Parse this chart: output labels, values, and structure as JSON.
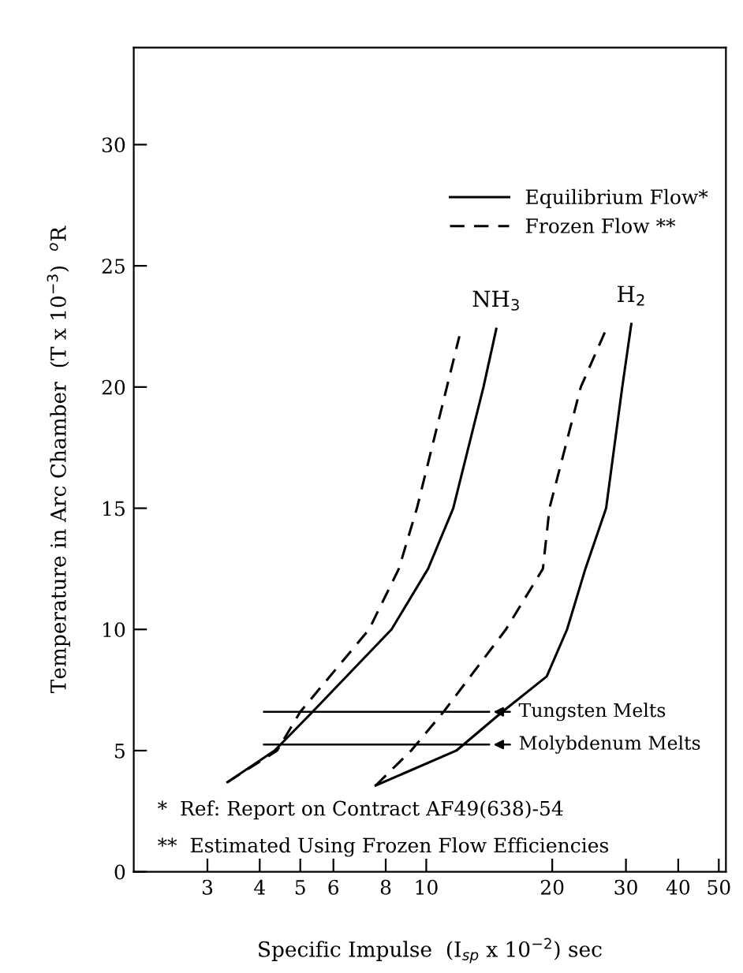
{
  "chart_data": {
    "type": "line",
    "xlabel": "Specific Impulse  (I$_{sp}$ x 10$^{−2}$) sec",
    "ylabel": "Temperature in Arc Chamber  (T x 10$^{−3}$)  $^{o}$R",
    "log": "x",
    "xlim": [
      2,
      52
    ],
    "xticks": [
      3,
      4,
      5,
      6,
      8,
      10,
      20,
      30,
      40,
      50
    ],
    "ylim": [
      0,
      34
    ],
    "yticks": [
      0,
      5,
      10,
      15,
      20,
      25,
      30
    ],
    "grid": false,
    "legend": "top right",
    "marker": "none",
    "series": [
      {
        "name": "Equilibrium Flow*",
        "color": "#000000",
        "line_style": "solid",
        "x": [
          3.35,
          4.34,
          5.35,
          8.26,
          10.1,
          11.6,
          13.7,
          14.7
        ],
        "values": [
          3.7,
          5,
          6.6,
          10,
          12.5,
          15,
          20,
          22.4
        ]
      },
      {
        "name": "Frozen Flow **",
        "color": "#000000",
        "line_style": "dashed",
        "x": [
          3.35,
          4.4,
          5.0,
          7.3,
          8.6,
          9.5,
          11.2,
          12.0
        ],
        "values": [
          3.7,
          5,
          6.6,
          10,
          12.5,
          15,
          20,
          22.1
        ]
      },
      {
        "color": "#000000",
        "line_style": "solid",
        "x": [
          7.57,
          11.8,
          15.2,
          19.4,
          21.7,
          24.0,
          26.9,
          29.4,
          30.9
        ],
        "values": [
          3.56,
          5,
          6.6,
          8.06,
          10,
          12.5,
          15,
          20,
          22.6
        ]
      },
      {
        "color": "#000000",
        "line_style": "dashed",
        "x": [
          7.57,
          9.2,
          11.0,
          15.5,
          19.0,
          19.7,
          23.4,
          26.7
        ],
        "values": [
          3.56,
          5,
          6.6,
          10,
          12.5,
          15,
          20,
          22.25
        ]
      }
    ],
    "ref_lines": [
      {
        "axis": "y",
        "value": 6.6,
        "label": "Tungsten Melts",
        "color": "#000000",
        "line_style": "solid"
      },
      {
        "axis": "y",
        "value": 5.25,
        "label": "Molybdenum Melts",
        "color": "#000000",
        "line_style": "solid"
      }
    ],
    "annotations": [
      "NH$_{3}$",
      "H$_{2}$",
      "*  Ref: Report on Contract AF49(638)-54",
      "**  Estimated Using Frozen Flow Efficiencies"
    ]
  }
}
